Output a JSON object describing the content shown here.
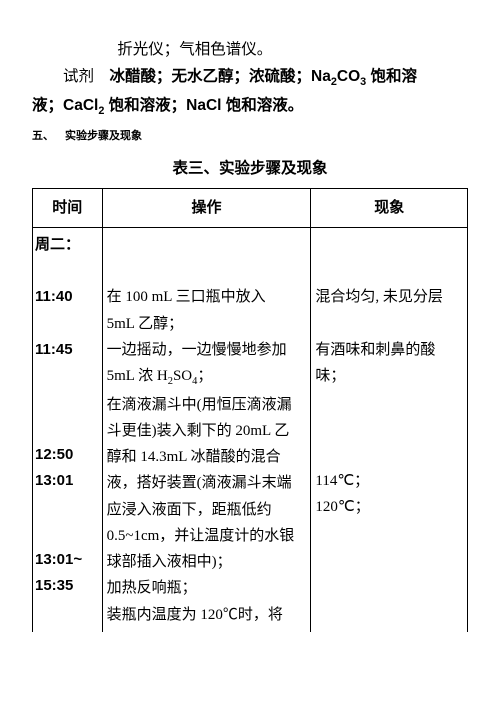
{
  "intro": {
    "line1": "折光仪；气相色谱仪。",
    "line2_prefix": "试剂 ",
    "line2_body": "冰醋酸；无水乙醇；浓硫酸；Na",
    "line2_sub1": "2",
    "line2_mid1": "CO",
    "line2_sub2": "3",
    "line2_after1": " 饱和溶",
    "line3_a": "液；CaCl",
    "line3_sub": "2",
    "line3_b": " 饱和溶液；NaCl 饱和溶液。"
  },
  "section_label": "五、 实验步骤及现象",
  "table_title": "表三、实验步骤及现象",
  "headers": {
    "time": "时间",
    "op": "操作",
    "phen": "现象"
  },
  "time_lines": [
    "周二：",
    " ",
    "11:40",
    " ",
    "11:45",
    " ",
    " ",
    " ",
    "12:50",
    "13:01",
    " ",
    " ",
    "13:01~",
    "15:35"
  ],
  "op": {
    "l0": " ",
    "l1": " ",
    "l2a": "在 100 mL 三口瓶中放入",
    "l2b": "5mL 乙醇；",
    "l3a": "一边摇动，一边慢慢地参加",
    "l3b_a": "5mL 浓 H",
    "l3b_sub1": "2",
    "l3b_b": "SO",
    "l3b_sub2": "4",
    "l3b_c": "；",
    "l4a": "在滴液漏斗中(用恒压滴液漏",
    "l4b": "斗更佳)装入剩下的 20mL 乙",
    "l4c": "醇和 14.3mL 冰醋酸的混合",
    "l4d": "液，搭好装置(滴液漏斗末端",
    "l4e": "应浸入液面下，距瓶低约",
    "l4f": "0.5~1cm，并让温度计的水银",
    "l4g": "球部插入液相中)；",
    "l5": "加热反响瓶；",
    "l6": "装瓶内温度为 120℃时，将"
  },
  "phen": {
    "l0": " ",
    "l1": " ",
    "p1": "混合均匀, 未见分层",
    "bl1": " ",
    "p2a": "有酒味和刺鼻的酸",
    "p2b": "味；",
    "bl2": " ",
    "bl3": " ",
    "bl4": " ",
    "p3a": "114℃；",
    "p3b": "120℃；"
  }
}
